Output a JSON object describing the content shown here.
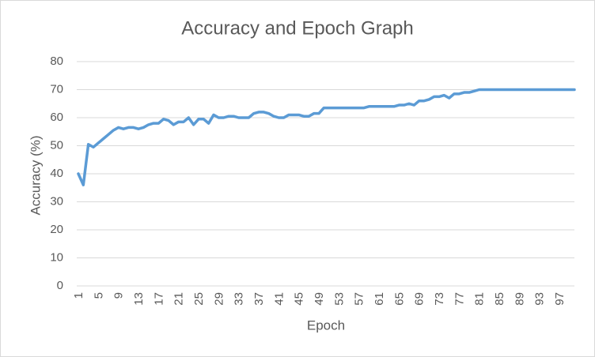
{
  "chart_data": {
    "type": "line",
    "title": "Accuracy and Epoch Graph",
    "x_label": "Epoch",
    "y_label": "Accuracy (%)",
    "categories": [
      1,
      null,
      null,
      null,
      5,
      null,
      null,
      null,
      9,
      null,
      null,
      null,
      13,
      null,
      null,
      null,
      17,
      null,
      null,
      null,
      21,
      null,
      null,
      null,
      25,
      null,
      null,
      null,
      29,
      null,
      null,
      null,
      33,
      null,
      null,
      null,
      37,
      null,
      null,
      null,
      41,
      null,
      null,
      null,
      45,
      null,
      null,
      null,
      49,
      null,
      null,
      null,
      53,
      null,
      null,
      null,
      57,
      null,
      null,
      null,
      61,
      null,
      null,
      null,
      65,
      null,
      null,
      null,
      69,
      null,
      null,
      null,
      73,
      null,
      null,
      null,
      77,
      null,
      null,
      null,
      81,
      null,
      null,
      null,
      85,
      null,
      null,
      null,
      89,
      null,
      null,
      null,
      93,
      null,
      null,
      null,
      97,
      null,
      null,
      null
    ],
    "series": [
      {
        "name": "Accuracy",
        "color": "#5b9bd5",
        "values": [
          40,
          36,
          50.5,
          49.5,
          51,
          52.5,
          54,
          55.5,
          56.5,
          56,
          56.5,
          56.5,
          56,
          56.5,
          57.5,
          58,
          58,
          59.5,
          59,
          57.5,
          58.5,
          58.5,
          60,
          57.5,
          59.5,
          59.5,
          58,
          61,
          60,
          60,
          60.5,
          60.5,
          60,
          60,
          60,
          61.5,
          62,
          62,
          61.5,
          60.5,
          60,
          60,
          61,
          61,
          61,
          60.5,
          60.5,
          61.5,
          61.5,
          63.5,
          63.5,
          63.5,
          63.5,
          63.5,
          63.5,
          63.5,
          63.5,
          63.5,
          64,
          64,
          64,
          64,
          64,
          64,
          64.5,
          64.5,
          65,
          64.5,
          66,
          66,
          66.5,
          67.5,
          67.5,
          68,
          67,
          68.5,
          68.5,
          69,
          69,
          69.5,
          70,
          70,
          70,
          70,
          70,
          70,
          70,
          70,
          70,
          70,
          70,
          70,
          70,
          70,
          70,
          70,
          70,
          70,
          70,
          70
        ]
      }
    ],
    "ylim": [
      0,
      80
    ],
    "yticks": [
      0,
      10,
      20,
      30,
      40,
      50,
      60,
      70,
      80
    ],
    "grid": true
  }
}
